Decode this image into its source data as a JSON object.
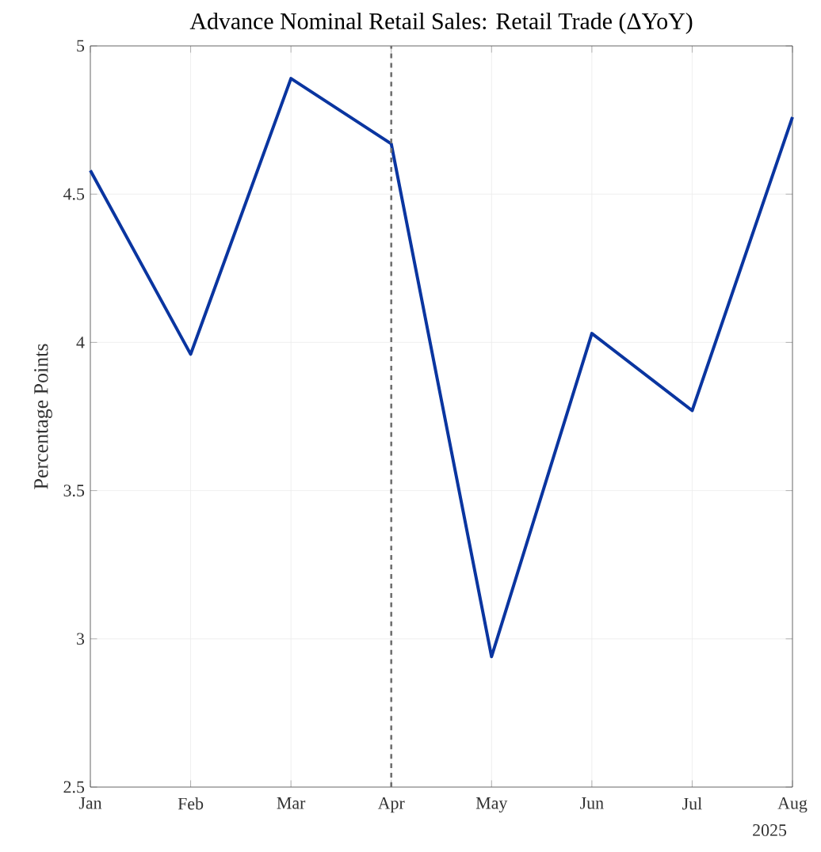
{
  "chart_data": {
    "type": "line",
    "title": "Advance Nominal Retail Sales: Retail Trade (ΔYoY)",
    "ylabel": "Percentage Points",
    "categories": [
      "Jan",
      "Feb",
      "Mar",
      "Apr",
      "May",
      "Jun",
      "Jul",
      "Aug"
    ],
    "series": [
      {
        "color": "#0a35a0",
        "values": [
          4.58,
          3.96,
          4.89,
          4.67,
          2.94,
          4.03,
          3.77,
          4.76
        ]
      }
    ],
    "ylim": [
      2.5,
      5
    ],
    "yticks": [
      2.5,
      3,
      3.5,
      4,
      4.5,
      5
    ],
    "grid": true,
    "marker": "none",
    "line_style": "solid",
    "ref_lines": [
      {
        "axis": "x",
        "value": "Apr",
        "color": "#707070",
        "line_style": "dashed"
      }
    ],
    "annotations": [
      "2025"
    ]
  }
}
